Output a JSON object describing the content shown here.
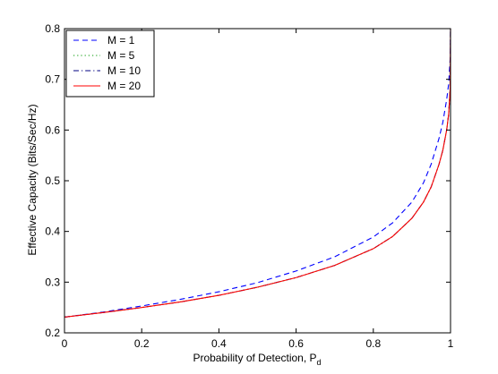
{
  "chart_data": {
    "type": "line",
    "title": "",
    "xlabel": "Probability of Detection, P",
    "xlabel_subscript": "d",
    "ylabel": "Effective Capacity (Bits/Sec/Hz)",
    "xlim": [
      0,
      1
    ],
    "ylim": [
      0.2,
      0.8
    ],
    "xticks": [
      0,
      0.2,
      0.4,
      0.6,
      0.8,
      1
    ],
    "xtick_labels": [
      "0",
      "0.2",
      "0.4",
      "0.6",
      "0.8",
      "1"
    ],
    "yticks": [
      0.2,
      0.3,
      0.4,
      0.5,
      0.6,
      0.7,
      0.8
    ],
    "ytick_labels": [
      "0.2",
      "0.3",
      "0.4",
      "0.5",
      "0.6",
      "0.7",
      "0.8"
    ],
    "grid": false,
    "legend_position": "top-left",
    "x": [
      0,
      0.1,
      0.2,
      0.3,
      0.4,
      0.5,
      0.6,
      0.7,
      0.8,
      0.85,
      0.9,
      0.93,
      0.95,
      0.97,
      0.98,
      0.99,
      0.995,
      0.999,
      1.0
    ],
    "series": [
      {
        "name": "M = 1",
        "color": "#0000ff",
        "dash": "dashed",
        "values": [
          0.231,
          0.241,
          0.253,
          0.266,
          0.281,
          0.299,
          0.322,
          0.35,
          0.389,
          0.417,
          0.458,
          0.496,
          0.533,
          0.583,
          0.615,
          0.66,
          0.69,
          0.74,
          0.8
        ]
      },
      {
        "name": "M = 5",
        "color": "#009900",
        "dash": "dotted",
        "values": [
          0.231,
          0.24,
          0.25,
          0.261,
          0.274,
          0.29,
          0.309,
          0.333,
          0.366,
          0.39,
          0.426,
          0.458,
          0.488,
          0.532,
          0.56,
          0.6,
          0.63,
          0.68,
          0.8
        ]
      },
      {
        "name": "M = 10",
        "color": "#000080",
        "dash": "dashdot",
        "values": [
          0.231,
          0.24,
          0.25,
          0.261,
          0.274,
          0.29,
          0.309,
          0.333,
          0.366,
          0.39,
          0.426,
          0.458,
          0.488,
          0.532,
          0.56,
          0.6,
          0.63,
          0.68,
          0.8
        ]
      },
      {
        "name": "M = 20",
        "color": "#ff0000",
        "dash": "solid",
        "values": [
          0.231,
          0.24,
          0.25,
          0.261,
          0.274,
          0.29,
          0.309,
          0.333,
          0.366,
          0.39,
          0.426,
          0.458,
          0.488,
          0.532,
          0.56,
          0.6,
          0.63,
          0.68,
          0.8
        ]
      }
    ]
  }
}
